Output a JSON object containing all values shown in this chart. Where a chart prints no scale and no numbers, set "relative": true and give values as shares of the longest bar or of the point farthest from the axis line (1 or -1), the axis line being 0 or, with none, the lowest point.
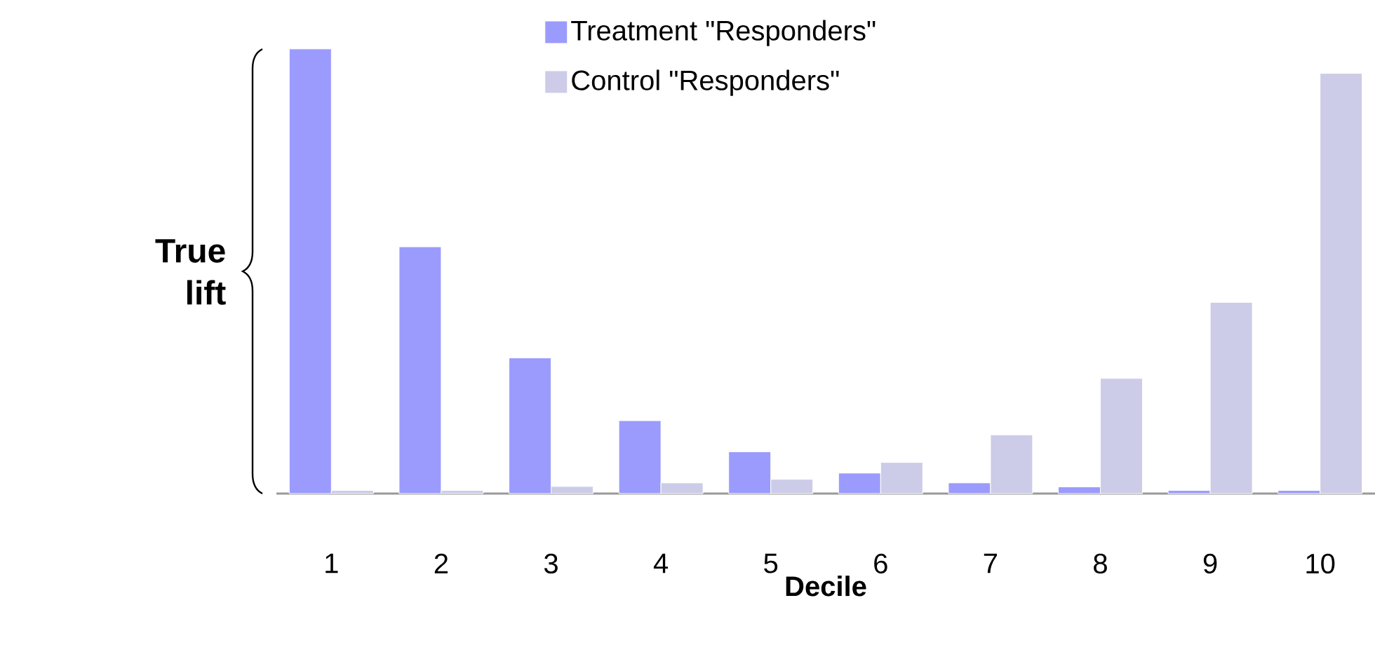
{
  "chart_data": {
    "type": "bar",
    "relative": true,
    "xlabel": "Decile",
    "categories": [
      "1",
      "2",
      "3",
      "4",
      "5",
      "6",
      "7",
      "8",
      "9",
      "10"
    ],
    "series": [
      {
        "name": "Treatment \"Responders\"",
        "color": "#9b9bfd",
        "values": [
          1.0,
          0.555,
          0.305,
          0.164,
          0.094,
          0.046,
          0.024,
          0.015,
          0.007,
          0.007
        ]
      },
      {
        "name": "Control \"Responders\"",
        "color": "#cccce8",
        "values": [
          0.007,
          0.007,
          0.016,
          0.024,
          0.032,
          0.07,
          0.132,
          0.259,
          0.43,
          0.945
        ]
      }
    ],
    "legend": "top",
    "grid": false,
    "annotations": [
      "True lift"
    ]
  }
}
